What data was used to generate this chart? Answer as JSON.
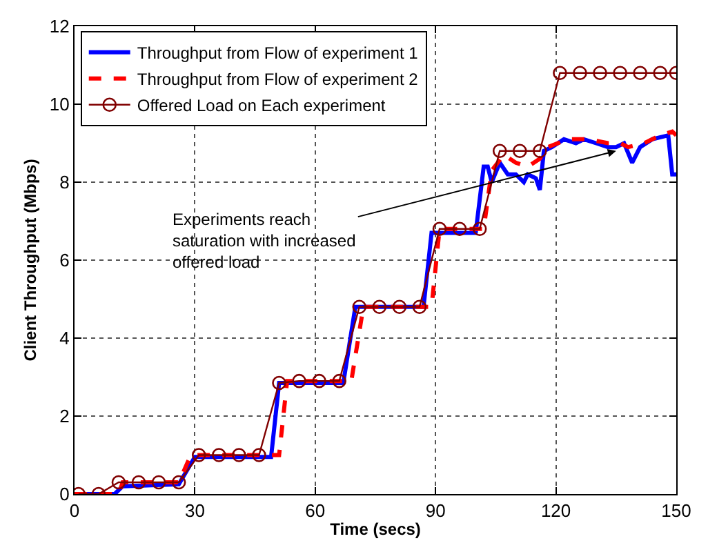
{
  "chart_data": {
    "type": "line",
    "xlabel": "Time (secs)",
    "ylabel": "Client Throughput (Mbps)",
    "xlim": [
      0,
      150
    ],
    "xticks": [
      0,
      30,
      60,
      90,
      120,
      150
    ],
    "ylim": [
      0,
      12
    ],
    "yticks": [
      0,
      2,
      4,
      6,
      8,
      10,
      12
    ],
    "grid": true,
    "legend": "top left",
    "series": [
      {
        "name": "Throughput from Flow of experiment 1",
        "color": "#0000ff",
        "line_style": "solid",
        "marker": "none",
        "x": [
          0,
          10,
          12,
          26,
          30,
          49,
          51,
          67,
          70,
          87,
          89,
          100,
          102,
          103,
          104,
          106,
          108,
          110,
          112,
          113,
          115,
          116,
          117,
          119,
          122,
          125,
          127,
          130,
          133,
          135,
          137,
          139,
          141,
          144,
          148,
          149,
          150
        ],
        "values": [
          0,
          0,
          0.2,
          0.25,
          0.95,
          0.95,
          2.85,
          2.85,
          4.8,
          4.8,
          6.7,
          6.7,
          8.4,
          8.4,
          8.0,
          8.5,
          8.2,
          8.2,
          8.0,
          8.2,
          8.1,
          7.8,
          8.8,
          8.9,
          9.1,
          9.0,
          9.1,
          9.0,
          8.9,
          8.9,
          9.0,
          8.5,
          8.9,
          9.1,
          9.2,
          8.2,
          8.2
        ]
      },
      {
        "name": "Throughput from Flow of experiment 2",
        "color": "#ff0000",
        "line_style": "dashed",
        "marker": "none",
        "x": [
          0,
          11,
          12,
          26,
          29,
          51,
          53,
          69,
          72,
          89,
          91,
          102,
          104,
          107,
          110,
          113,
          116,
          118,
          123,
          128,
          133,
          136,
          138,
          142,
          146,
          149,
          150
        ],
        "values": [
          0,
          0,
          0.3,
          0.3,
          1.0,
          1.0,
          2.9,
          2.9,
          4.8,
          4.8,
          6.8,
          6.8,
          8.3,
          8.7,
          8.5,
          8.4,
          8.6,
          8.9,
          9.1,
          9.1,
          9.0,
          9.0,
          8.9,
          9.0,
          9.2,
          9.3,
          9.2
        ]
      },
      {
        "name": "Offered Load on Each experiment",
        "color": "#800000",
        "line_style": "solid",
        "marker": "circle",
        "x": [
          1,
          6,
          11,
          16,
          21,
          26,
          31,
          36,
          41,
          46,
          51,
          56,
          61,
          66,
          71,
          76,
          81,
          86,
          91,
          96,
          101,
          106,
          111,
          116,
          121,
          126,
          131,
          136,
          141,
          146,
          150
        ],
        "values": [
          0,
          0,
          0.3,
          0.3,
          0.3,
          0.3,
          1.0,
          1.0,
          1.0,
          1.0,
          2.85,
          2.9,
          2.9,
          2.9,
          4.8,
          4.8,
          4.8,
          4.8,
          6.8,
          6.8,
          6.8,
          8.8,
          8.8,
          8.8,
          10.8,
          10.8,
          10.8,
          10.8,
          10.8,
          10.8,
          10.8
        ]
      }
    ],
    "annotations": [
      {
        "text": "Experiments reach\nsaturation with increased\noffered load",
        "x": 135,
        "y": 8.8
      }
    ]
  }
}
